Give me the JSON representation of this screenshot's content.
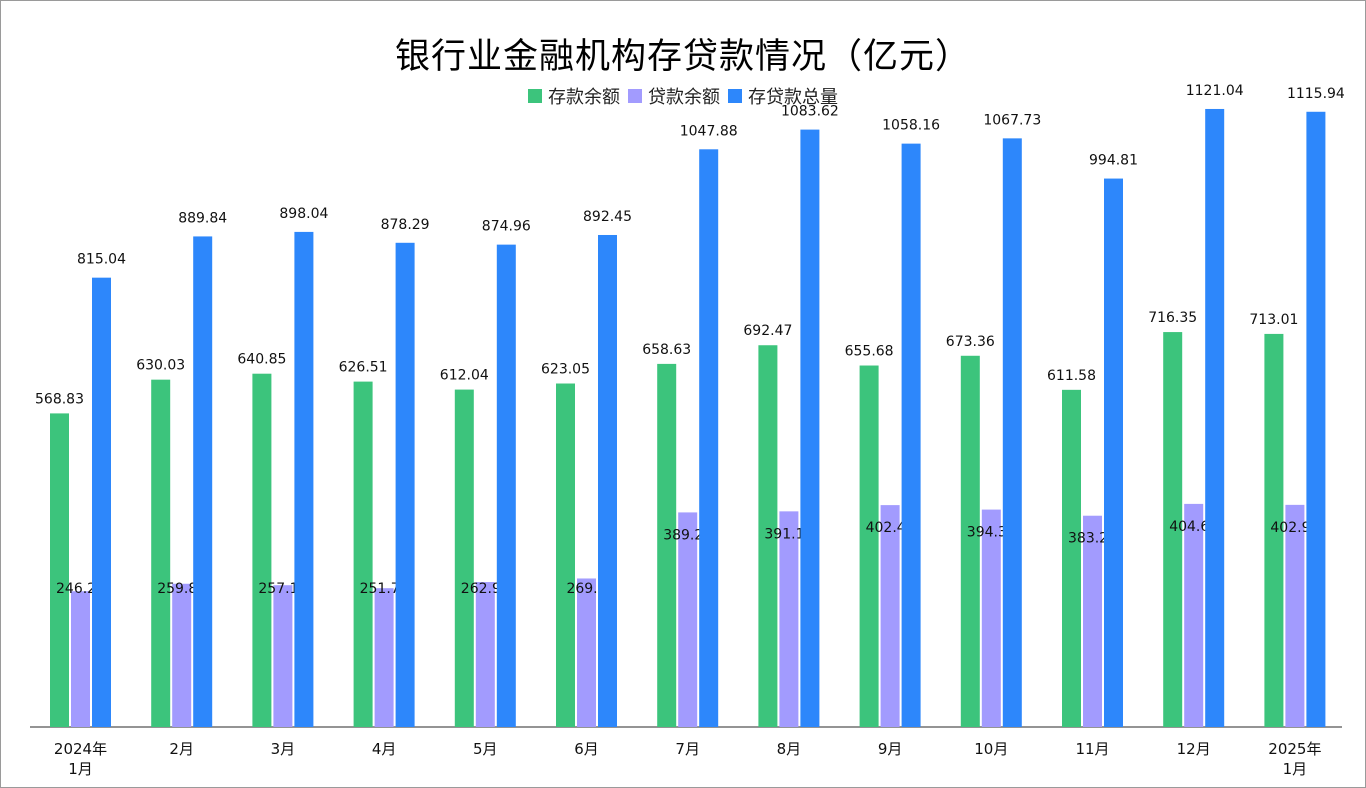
{
  "chart_data": {
    "type": "bar",
    "title": "银行业金融机构存贷款情况（亿元）",
    "categories": [
      [
        "2024年",
        "1月"
      ],
      [
        "2月"
      ],
      [
        "3月"
      ],
      [
        "4月"
      ],
      [
        "5月"
      ],
      [
        "6月"
      ],
      [
        "7月"
      ],
      [
        "8月"
      ],
      [
        "9月"
      ],
      [
        "10月"
      ],
      [
        "11月"
      ],
      [
        "12月"
      ],
      [
        "2025年",
        "1月"
      ]
    ],
    "series": [
      {
        "name": "存款余额",
        "color": "#3cc47c",
        "values": [
          568.83,
          630.03,
          640.85,
          626.51,
          612.04,
          623.05,
          658.63,
          692.47,
          655.68,
          673.36,
          611.58,
          716.35,
          713.01
        ]
      },
      {
        "name": "贷款余额",
        "color": "#a29bfe",
        "values": [
          246.21,
          259.81,
          257.19,
          251.78,
          262.92,
          269.4,
          389.25,
          391.15,
          402.48,
          394.37,
          383.23,
          404.69,
          402.93
        ]
      },
      {
        "name": "存贷款总量",
        "color": "#2d87fb",
        "values": [
          815.04,
          889.84,
          898.04,
          878.29,
          874.96,
          892.45,
          1047.88,
          1083.62,
          1058.16,
          1067.73,
          994.81,
          1121.04,
          1115.94
        ]
      }
    ],
    "ylim": [
      0,
      1150
    ],
    "legend_position": "top-center",
    "grid": false
  }
}
